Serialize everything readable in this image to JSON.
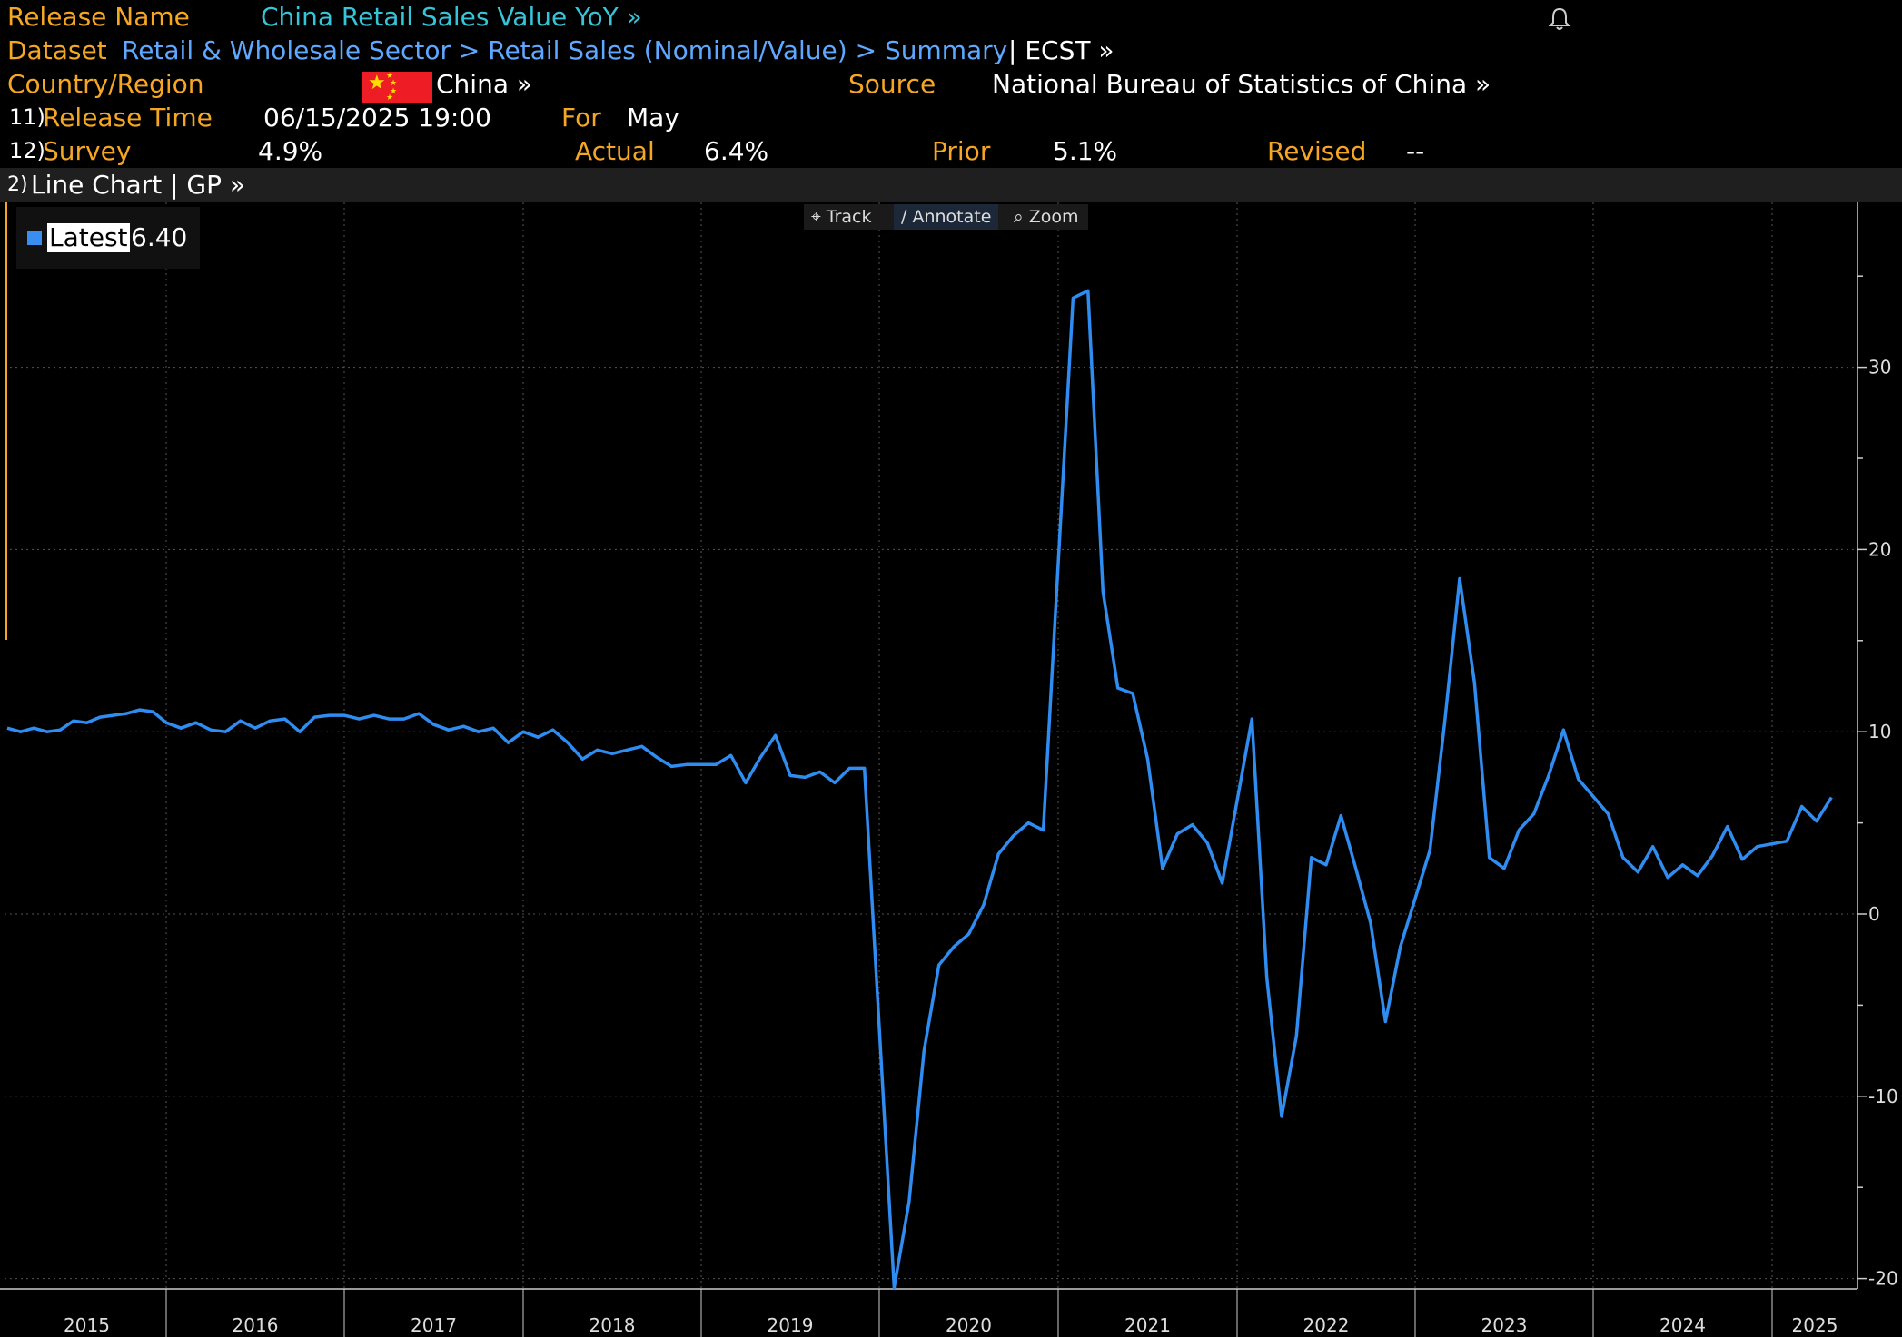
{
  "header": {
    "release_name_label": "Release Name",
    "release_name_value": "China Retail Sales Value YoY »",
    "dataset_label": "Dataset",
    "dataset_path": "Retail & Wholesale Sector > Retail Sales (Nominal/Value) > Summary",
    "dataset_suffix": "| ECST »",
    "country_label": "Country/Region",
    "country_value": "China »",
    "source_label": "Source",
    "source_value": "National Bureau of Statistics of China »",
    "release_time_num": "11)",
    "release_time_label": "Release Time",
    "release_time_value": "06/15/2025 19:00",
    "for_label": "For",
    "for_value": "May",
    "survey_num": "12)",
    "survey_label": "Survey",
    "survey_value": "4.9%",
    "actual_label": "Actual",
    "actual_value": "6.4%",
    "prior_label": "Prior",
    "prior_value": "5.1%",
    "revised_label": "Revised",
    "revised_value": "--"
  },
  "toolbar": {
    "num": "2)",
    "label": "Line Chart | GP »"
  },
  "chart_controls": {
    "track": "Track",
    "annotate": "Annotate",
    "zoom": "Zoom",
    "track_icon": "crosshair-icon",
    "annotate_icon": "pencil-icon",
    "zoom_icon": "magnifier-icon"
  },
  "legend": {
    "name": "Latest",
    "value": "6.40"
  },
  "colors": {
    "line": "#2f8cf0",
    "label": "#f5a623",
    "title": "#36c5d8",
    "link": "#5ea8ff",
    "background": "#000000"
  },
  "chart_data": {
    "type": "line",
    "title": "",
    "xlabel": "",
    "ylabel": "",
    "x_tick_labels": [
      "2015",
      "2016",
      "2017",
      "2018",
      "2019",
      "2020",
      "2021",
      "2022",
      "2023",
      "2024",
      "2025"
    ],
    "y_ticks": [
      30,
      20,
      10,
      0,
      -10,
      -20
    ],
    "ylim": [
      -20,
      38
    ],
    "y_axis_side": "right",
    "grid": true,
    "legend_position": "top-left",
    "x_start": "2015-01",
    "x_end": "2025-05",
    "series": [
      {
        "name": "Latest",
        "x": [
          "2015-01",
          "2015-02",
          "2015-03",
          "2015-04",
          "2015-05",
          "2015-06",
          "2015-07",
          "2015-08",
          "2015-09",
          "2015-10",
          "2015-11",
          "2015-12",
          "2016-01",
          "2016-02",
          "2016-03",
          "2016-04",
          "2016-05",
          "2016-06",
          "2016-07",
          "2016-08",
          "2016-09",
          "2016-10",
          "2016-11",
          "2016-12",
          "2017-01",
          "2017-02",
          "2017-03",
          "2017-04",
          "2017-05",
          "2017-06",
          "2017-07",
          "2017-08",
          "2017-09",
          "2017-10",
          "2017-11",
          "2017-12",
          "2018-01",
          "2018-02",
          "2018-03",
          "2018-04",
          "2018-05",
          "2018-06",
          "2018-07",
          "2018-08",
          "2018-09",
          "2018-10",
          "2018-11",
          "2018-12",
          "2019-01",
          "2019-02",
          "2019-03",
          "2019-04",
          "2019-05",
          "2019-06",
          "2019-07",
          "2019-08",
          "2019-09",
          "2019-10",
          "2019-11",
          "2019-12",
          "2020-02",
          "2020-03",
          "2020-04",
          "2020-05",
          "2020-06",
          "2020-07",
          "2020-08",
          "2020-09",
          "2020-10",
          "2020-11",
          "2020-12",
          "2021-02",
          "2021-03",
          "2021-04",
          "2021-05",
          "2021-06",
          "2021-07",
          "2021-08",
          "2021-09",
          "2021-10",
          "2021-11",
          "2021-12",
          "2022-02",
          "2022-03",
          "2022-04",
          "2022-05",
          "2022-06",
          "2022-07",
          "2022-08",
          "2022-09",
          "2022-10",
          "2022-11",
          "2022-12",
          "2023-02",
          "2023-03",
          "2023-04",
          "2023-05",
          "2023-06",
          "2023-07",
          "2023-08",
          "2023-09",
          "2023-10",
          "2023-11",
          "2023-12",
          "2024-02",
          "2024-03",
          "2024-04",
          "2024-05",
          "2024-06",
          "2024-07",
          "2024-08",
          "2024-09",
          "2024-10",
          "2024-11",
          "2024-12",
          "2025-02",
          "2025-03",
          "2025-04",
          "2025-05"
        ],
        "values": [
          10.2,
          10.0,
          10.2,
          10.0,
          10.1,
          10.6,
          10.5,
          10.8,
          10.9,
          11.0,
          11.2,
          11.1,
          10.5,
          10.2,
          10.5,
          10.1,
          10.0,
          10.6,
          10.2,
          10.6,
          10.7,
          10.0,
          10.8,
          10.9,
          10.9,
          10.7,
          10.9,
          10.7,
          10.7,
          11.0,
          10.4,
          10.1,
          10.3,
          10.0,
          10.2,
          9.4,
          10.0,
          9.7,
          10.1,
          9.4,
          8.5,
          9.0,
          8.8,
          9.0,
          9.2,
          8.6,
          8.1,
          8.2,
          8.2,
          8.2,
          8.7,
          7.2,
          8.6,
          9.8,
          7.6,
          7.5,
          7.8,
          7.2,
          8.0,
          8.0,
          -20.5,
          -15.8,
          -7.5,
          -2.8,
          -1.8,
          -1.1,
          0.5,
          3.3,
          4.3,
          5.0,
          4.6,
          33.8,
          34.2,
          17.7,
          12.4,
          12.1,
          8.5,
          2.5,
          4.4,
          4.9,
          3.9,
          1.7,
          10.7,
          -3.5,
          -11.1,
          -6.7,
          3.1,
          2.7,
          5.4,
          2.5,
          -0.5,
          -5.9,
          -1.8,
          3.5,
          10.6,
          18.4,
          12.7,
          3.1,
          2.5,
          4.6,
          5.5,
          7.6,
          10.1,
          7.4,
          5.5,
          3.1,
          2.3,
          3.7,
          2.0,
          2.7,
          2.1,
          3.2,
          4.8,
          3.0,
          3.7,
          4.0,
          5.9,
          5.1,
          6.4
        ]
      }
    ]
  }
}
